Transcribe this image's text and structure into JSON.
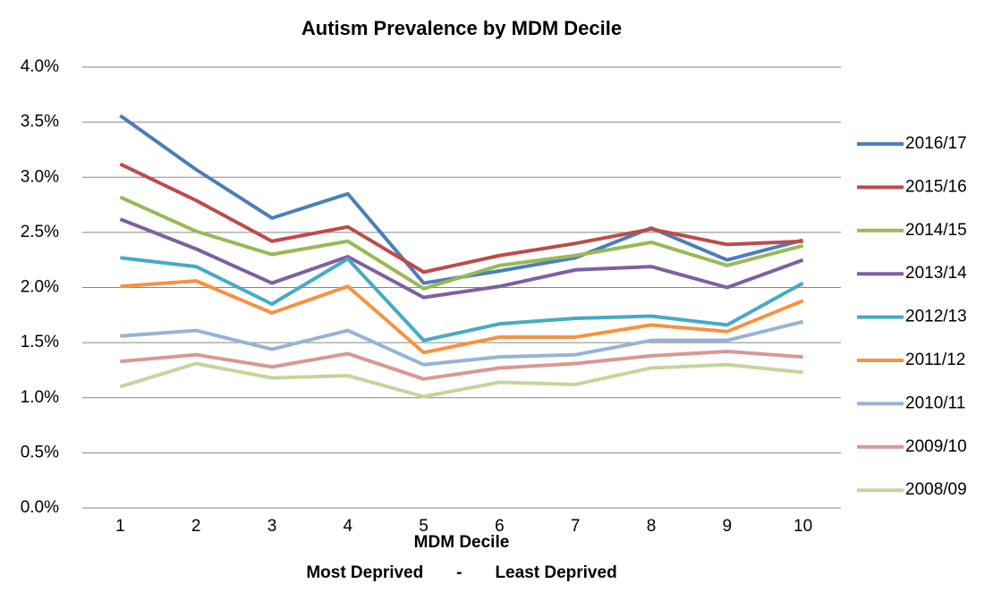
{
  "chart_data": {
    "type": "line",
    "title": "Autism Prevalence by MDM Decile",
    "xlabel": "MDM Decile",
    "xlabel_note": "Most Deprived       -       Least Deprived",
    "categories": [
      "1",
      "2",
      "3",
      "4",
      "5",
      "6",
      "7",
      "8",
      "9",
      "10"
    ],
    "ylim": [
      0,
      4
    ],
    "yticks": [
      {
        "value": 0,
        "label": "0.0%"
      },
      {
        "value": 0.5,
        "label": "0.5%"
      },
      {
        "value": 1,
        "label": "1.0%"
      },
      {
        "value": 1.5,
        "label": "1.5%"
      },
      {
        "value": 2,
        "label": "2.0%"
      },
      {
        "value": 2.5,
        "label": "2.5%"
      },
      {
        "value": 3,
        "label": "3.0%"
      },
      {
        "value": 3.5,
        "label": "3.5%"
      },
      {
        "value": 4,
        "label": "4.0%"
      }
    ],
    "grid": true,
    "legend": "right",
    "series": [
      {
        "name": "2016/17",
        "color": "#4a7ebb",
        "values": [
          3.56,
          3.07,
          2.63,
          2.85,
          2.04,
          2.15,
          2.27,
          2.54,
          2.25,
          2.43
        ]
      },
      {
        "name": "2015/16",
        "color": "#be4b48",
        "values": [
          3.12,
          2.79,
          2.42,
          2.55,
          2.14,
          2.29,
          2.4,
          2.53,
          2.39,
          2.42
        ]
      },
      {
        "name": "2014/15",
        "color": "#98b954",
        "values": [
          2.82,
          2.51,
          2.3,
          2.42,
          1.99,
          2.2,
          2.29,
          2.41,
          2.2,
          2.38
        ]
      },
      {
        "name": "2013/14",
        "color": "#7d60a0",
        "values": [
          2.62,
          2.35,
          2.04,
          2.28,
          1.91,
          2.01,
          2.16,
          2.19,
          2.0,
          2.25
        ]
      },
      {
        "name": "2012/13",
        "color": "#46aac5",
        "values": [
          2.27,
          2.19,
          1.85,
          2.26,
          1.52,
          1.67,
          1.72,
          1.74,
          1.66,
          2.04
        ]
      },
      {
        "name": "2011/12",
        "color": "#f69240",
        "values": [
          2.01,
          2.06,
          1.77,
          2.01,
          1.41,
          1.55,
          1.55,
          1.66,
          1.6,
          1.88
        ]
      },
      {
        "name": "2010/11",
        "color": "#95b3d7",
        "values": [
          1.56,
          1.61,
          1.44,
          1.61,
          1.3,
          1.37,
          1.39,
          1.52,
          1.52,
          1.69
        ]
      },
      {
        "name": "2009/10",
        "color": "#d99795",
        "values": [
          1.33,
          1.39,
          1.28,
          1.4,
          1.17,
          1.27,
          1.31,
          1.38,
          1.42,
          1.37
        ]
      },
      {
        "name": "2008/09",
        "color": "#c3d69b",
        "values": [
          1.1,
          1.31,
          1.18,
          1.2,
          1.01,
          1.14,
          1.12,
          1.27,
          1.3,
          1.23
        ]
      }
    ]
  }
}
